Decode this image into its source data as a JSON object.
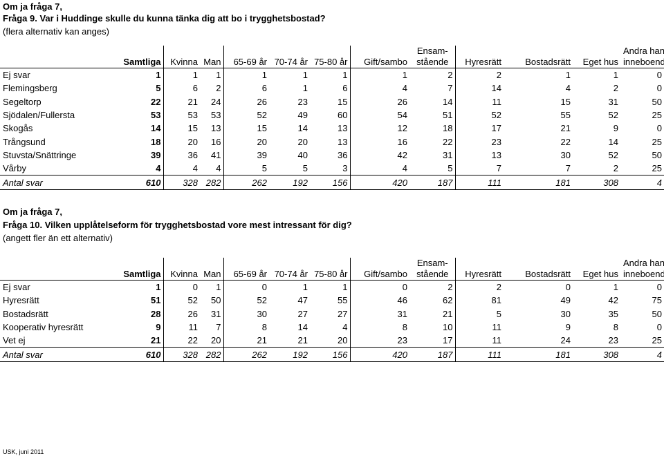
{
  "section1": {
    "title_line1": "Om ja fråga 7,",
    "title_line2": "Fråga 9. Var i Huddinge skulle du kunna tänka dig att bo i trygghetsbostad?",
    "title_line3": "(flera alternativ kan anges)"
  },
  "section2": {
    "title_line1": "Om ja fråga 7,",
    "title_line2": "Fråga 10. Vilken upplåtelseform för trygghetsbostad vore mest intressant för dig?",
    "title_line3": "(angett fler än ett alternativ)"
  },
  "columns": {
    "samtliga": "Samtliga",
    "kvinna": "Kvinna",
    "man": "Man",
    "age1": "65-69 år",
    "age2": "70-74 år",
    "age3": "75-80 år",
    "gift": "Gift/sambo",
    "ensam1": "Ensam-",
    "ensam2": "stående",
    "hyresratt": "Hyresrätt",
    "bostadsratt": "Bostadsrätt",
    "eget": "Eget hus",
    "andra1": "Andra hand/",
    "andra2": "inneboende"
  },
  "table1": {
    "rows": [
      {
        "label": "Ej svar",
        "v": [
          "1",
          "1",
          "1",
          "1",
          "1",
          "1",
          "1",
          "2",
          "2",
          "1",
          "1",
          "0"
        ]
      },
      {
        "label": "Flemingsberg",
        "v": [
          "5",
          "6",
          "2",
          "6",
          "1",
          "6",
          "4",
          "7",
          "14",
          "4",
          "2",
          "0"
        ]
      },
      {
        "label": "Segeltorp",
        "v": [
          "22",
          "21",
          "24",
          "26",
          "23",
          "15",
          "26",
          "14",
          "11",
          "15",
          "31",
          "50"
        ]
      },
      {
        "label": "Sjödalen/Fullersta",
        "v": [
          "53",
          "53",
          "53",
          "52",
          "49",
          "60",
          "54",
          "51",
          "52",
          "55",
          "52",
          "25"
        ]
      },
      {
        "label": "Skogås",
        "v": [
          "14",
          "15",
          "13",
          "15",
          "14",
          "13",
          "12",
          "18",
          "17",
          "21",
          "9",
          "0"
        ]
      },
      {
        "label": "Trångsund",
        "v": [
          "18",
          "20",
          "16",
          "20",
          "20",
          "13",
          "16",
          "22",
          "23",
          "22",
          "14",
          "25"
        ]
      },
      {
        "label": "Stuvsta/Snättringe",
        "v": [
          "39",
          "36",
          "41",
          "39",
          "40",
          "36",
          "42",
          "31",
          "13",
          "30",
          "52",
          "50"
        ]
      },
      {
        "label": "Vårby",
        "v": [
          "4",
          "4",
          "4",
          "5",
          "5",
          "3",
          "4",
          "5",
          "7",
          "7",
          "2",
          "25"
        ]
      }
    ],
    "total": {
      "label": "Antal svar",
      "v": [
        "610",
        "328",
        "282",
        "262",
        "192",
        "156",
        "420",
        "187",
        "111",
        "181",
        "308",
        "4"
      ]
    }
  },
  "table2": {
    "rows": [
      {
        "label": "Ej svar",
        "v": [
          "1",
          "0",
          "1",
          "0",
          "1",
          "1",
          "0",
          "2",
          "2",
          "0",
          "1",
          "0"
        ]
      },
      {
        "label": "Hyresrätt",
        "v": [
          "51",
          "52",
          "50",
          "52",
          "47",
          "55",
          "46",
          "62",
          "81",
          "49",
          "42",
          "75"
        ]
      },
      {
        "label": "Bostadsrätt",
        "v": [
          "28",
          "26",
          "31",
          "30",
          "27",
          "27",
          "31",
          "21",
          "5",
          "30",
          "35",
          "50"
        ]
      },
      {
        "label": "Kooperativ hyresrätt",
        "v": [
          "9",
          "11",
          "7",
          "8",
          "14",
          "4",
          "8",
          "10",
          "11",
          "9",
          "8",
          "0"
        ]
      },
      {
        "label": "Vet ej",
        "v": [
          "21",
          "22",
          "20",
          "21",
          "21",
          "20",
          "23",
          "17",
          "11",
          "24",
          "23",
          "25"
        ]
      }
    ],
    "total": {
      "label": "Antal svar",
      "v": [
        "610",
        "328",
        "282",
        "262",
        "192",
        "156",
        "420",
        "187",
        "111",
        "181",
        "308",
        "4"
      ]
    }
  },
  "footer": "USK, juni 2011"
}
